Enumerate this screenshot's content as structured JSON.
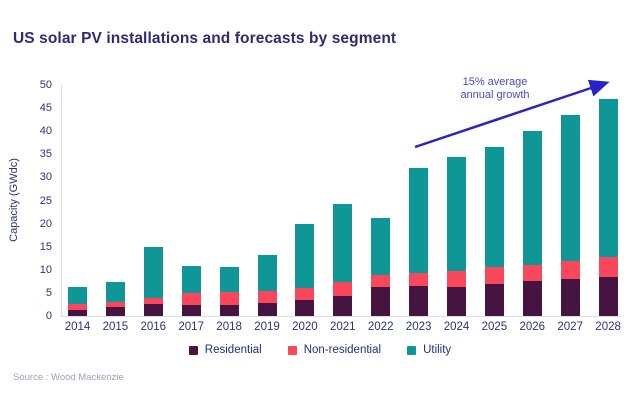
{
  "title": "US solar PV installations and forecasts by segment",
  "source": "Source : Wood Mackenzie",
  "annotation": {
    "line1": "15% average",
    "line2": "annual growth"
  },
  "colors": {
    "title": "#2d2b71",
    "axis_text": "#2a3379",
    "axis_line": "#dcdce6",
    "arrow": "#2823c5",
    "annotation_text": "#4a48c9",
    "residential": "#461440",
    "non_residential": "#f9485c",
    "utility": "#0e9796",
    "source_text": "#99a2ba"
  },
  "chart_data": {
    "type": "bar",
    "stacked": true,
    "title": "US solar PV installations and forecasts by segment",
    "xlabel": "",
    "ylabel": "Capacity (GWdc)",
    "ylim": [
      0,
      50
    ],
    "ytick_step": 5,
    "grid": false,
    "legend_position": "bottom",
    "annotation": "15% average annual growth",
    "categories": [
      "2014",
      "2015",
      "2016",
      "2017",
      "2018",
      "2019",
      "2020",
      "2021",
      "2022",
      "2023",
      "2024",
      "2025",
      "2026",
      "2027",
      "2028"
    ],
    "series": [
      {
        "name": "Residential",
        "color": "#461440",
        "values": [
          1.4,
          2.0,
          2.7,
          2.4,
          2.4,
          2.8,
          3.5,
          4.4,
          6.2,
          6.5,
          6.2,
          7.0,
          7.5,
          8.0,
          8.5
        ]
      },
      {
        "name": "Non-residential",
        "color": "#f9485c",
        "values": [
          1.2,
          1.0,
          1.3,
          2.6,
          2.7,
          2.6,
          2.6,
          3.0,
          2.7,
          2.8,
          3.6,
          3.7,
          3.5,
          4.0,
          4.3
        ]
      },
      {
        "name": "Utility",
        "color": "#0e9796",
        "values": [
          3.6,
          4.3,
          11.0,
          5.8,
          5.5,
          7.9,
          13.9,
          16.9,
          12.4,
          22.7,
          24.7,
          25.8,
          29.0,
          31.5,
          34.2
        ]
      }
    ],
    "totals": [
      6.2,
      7.3,
      15.0,
      10.8,
      10.6,
      13.3,
      20.0,
      24.3,
      21.3,
      32.0,
      34.5,
      36.5,
      40.0,
      43.5,
      47.0
    ]
  }
}
